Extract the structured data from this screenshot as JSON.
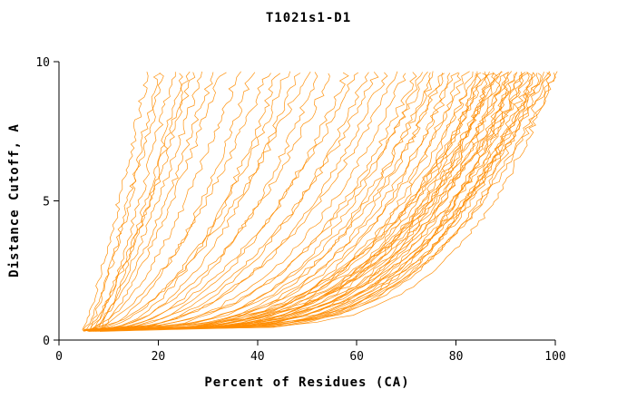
{
  "chart_data": {
    "type": "line",
    "title": "T1021s1-D1",
    "xlabel": "Percent of Residues (CA)",
    "ylabel": "Distance Cutoff, A",
    "xlim": [
      0,
      100
    ],
    "ylim": [
      0,
      10
    ],
    "xticks": [
      0,
      20,
      40,
      60,
      80,
      100
    ],
    "yticks": [
      0,
      5,
      10
    ],
    "grid": false,
    "legend": "none",
    "line_color": "#ff8c00",
    "axis_color": "#000000",
    "y_start": 0.35,
    "y_top": 9.62,
    "curves_format": "[x_at_bottom_percent, x_at_top_percent, shape_exponent] per model curve (cumulative distance-cutoff curves, one per predicted model)",
    "curves": [
      [
        5,
        18,
        1.15
      ],
      [
        6,
        20,
        1.2
      ],
      [
        5,
        21,
        1.3
      ],
      [
        7,
        23,
        1.25
      ],
      [
        6,
        25,
        1.35
      ],
      [
        8,
        26,
        1.2
      ],
      [
        5,
        27,
        1.4
      ],
      [
        7,
        29,
        1.3
      ],
      [
        6,
        31,
        1.45
      ],
      [
        8,
        33,
        1.3
      ],
      [
        6,
        36,
        1.6
      ],
      [
        7,
        39,
        1.8
      ],
      [
        5,
        42,
        1.7
      ],
      [
        8,
        44,
        2.0
      ],
      [
        6,
        46,
        1.9
      ],
      [
        7,
        48,
        2.1
      ],
      [
        5,
        50,
        1.8
      ],
      [
        8,
        52,
        2.2
      ],
      [
        6,
        55,
        2.0
      ],
      [
        7,
        58,
        2.3
      ],
      [
        6,
        60,
        2.1
      ],
      [
        8,
        62,
        2.4
      ],
      [
        7,
        64,
        2.2
      ],
      [
        6,
        66,
        2.5
      ],
      [
        8,
        68,
        2.3
      ],
      [
        7,
        70,
        2.6
      ],
      [
        6,
        72,
        2.8
      ],
      [
        7,
        73,
        3.0
      ],
      [
        5,
        74,
        2.7
      ],
      [
        8,
        75,
        3.2
      ],
      [
        6,
        76,
        2.9
      ],
      [
        7,
        77,
        3.4
      ],
      [
        5,
        78,
        3.0
      ],
      [
        8,
        79,
        3.6
      ],
      [
        6,
        80,
        3.1
      ],
      [
        7,
        81,
        3.8
      ],
      [
        5,
        82,
        3.2
      ],
      [
        8,
        83,
        4.0
      ],
      [
        6,
        84,
        3.3
      ],
      [
        7,
        85,
        4.2
      ],
      [
        5,
        86,
        3.4
      ],
      [
        8,
        87,
        4.4
      ],
      [
        6,
        88,
        3.5
      ],
      [
        7,
        89,
        4.6
      ],
      [
        5,
        90,
        3.6
      ],
      [
        8,
        91,
        4.8
      ],
      [
        6,
        92,
        3.7
      ],
      [
        7,
        93,
        5.0
      ],
      [
        5,
        94,
        3.8
      ],
      [
        8,
        95,
        4.4
      ],
      [
        6,
        96,
        3.9
      ],
      [
        7,
        97,
        4.6
      ],
      [
        5,
        98,
        4.0
      ],
      [
        8,
        99,
        4.2
      ],
      [
        6,
        100,
        4.1
      ],
      [
        7,
        100,
        4.8
      ],
      [
        6,
        99,
        3.4
      ],
      [
        7,
        98,
        3.0
      ],
      [
        8,
        97,
        3.7
      ],
      [
        6,
        96,
        4.3
      ],
      [
        7,
        95,
        2.8
      ],
      [
        8,
        94,
        3.9
      ],
      [
        6,
        93,
        3.3
      ],
      [
        7,
        92,
        4.5
      ],
      [
        8,
        91,
        3.1
      ],
      [
        6,
        90,
        4.1
      ],
      [
        7,
        89,
        2.9
      ],
      [
        8,
        88,
        3.6
      ],
      [
        6,
        87,
        4.3
      ],
      [
        7,
        86,
        3.2
      ],
      [
        8,
        85,
        3.8
      ]
    ]
  }
}
